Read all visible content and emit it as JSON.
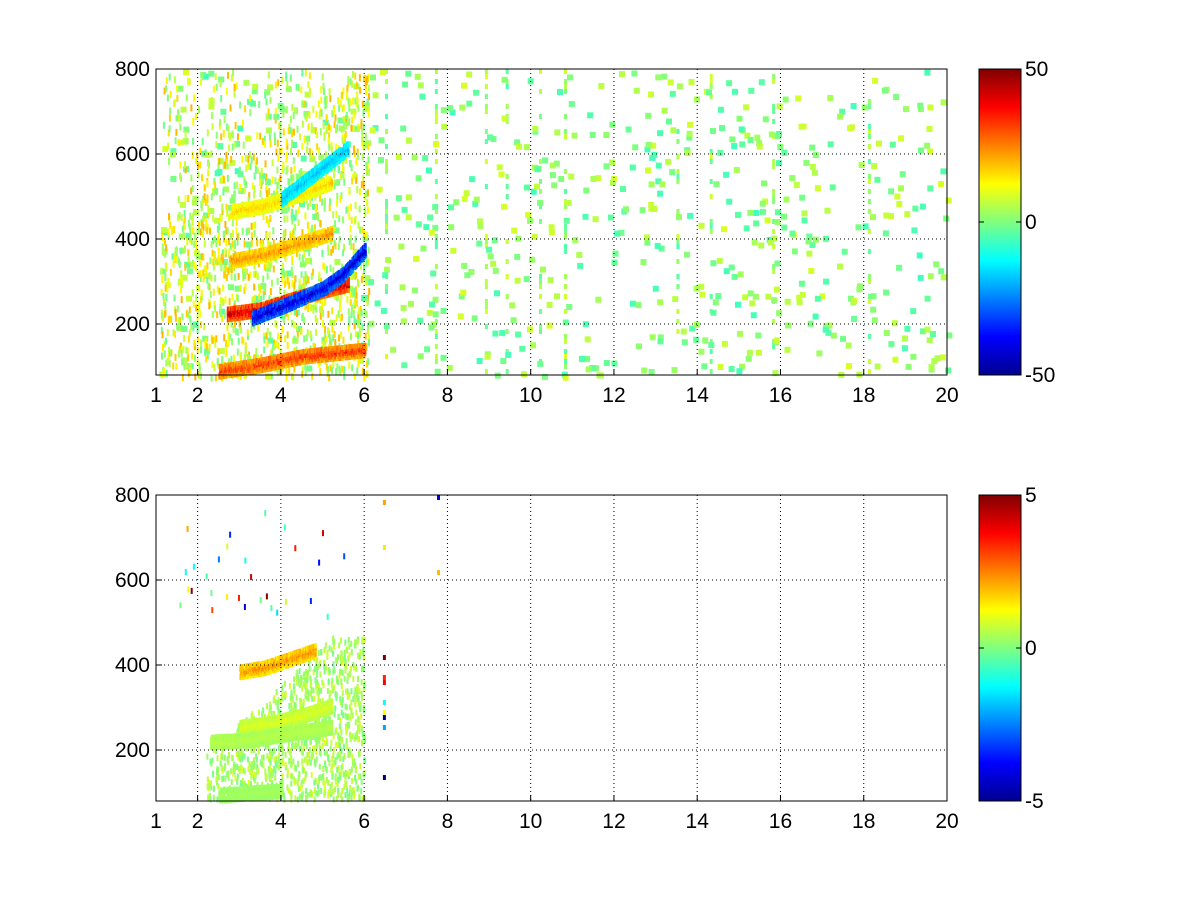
{
  "chart_data": [
    {
      "type": "heatmap",
      "title": "",
      "xlabel": "",
      "ylabel": "",
      "xlim": [
        1,
        20
      ],
      "ylim": [
        80,
        800
      ],
      "x_ticks": [
        1,
        2,
        4,
        6,
        8,
        10,
        12,
        14,
        16,
        18,
        20
      ],
      "x_tick_labels": [
        "1",
        "2",
        "4",
        "6",
        "8",
        "10",
        "12",
        "14",
        "16",
        "18",
        "20"
      ],
      "y_ticks": [
        200,
        400,
        600,
        800
      ],
      "y_tick_labels": [
        "200",
        "400",
        "600",
        "800"
      ],
      "grid": true,
      "colormap": "jet",
      "clim": [
        -50,
        50
      ],
      "colorbar_ticks": [
        -50,
        0,
        50
      ],
      "colorbar_tick_labels": [
        "-50",
        "0",
        "50"
      ],
      "features": [
        {
          "kind": "ridge",
          "x": [
            2.5,
            3.5,
            4.5,
            5.5,
            6.0
          ],
          "y": [
            95,
            110,
            130,
            140,
            145
          ],
          "value": 35
        },
        {
          "kind": "ridge",
          "x": [
            2.7,
            3.5,
            4.3,
            5.0,
            5.6
          ],
          "y": [
            230,
            240,
            265,
            285,
            300
          ],
          "value": 45
        },
        {
          "kind": "ridge",
          "x": [
            3.3,
            4.2,
            5.0,
            5.5,
            6.0
          ],
          "y": [
            220,
            255,
            290,
            325,
            380
          ],
          "value": -45
        },
        {
          "kind": "ridge",
          "x": [
            2.8,
            3.6,
            4.4,
            5.2
          ],
          "y": [
            355,
            370,
            395,
            420
          ],
          "value": 25
        },
        {
          "kind": "ridge",
          "x": [
            2.8,
            3.6,
            4.4,
            5.2
          ],
          "y": [
            470,
            485,
            510,
            540
          ],
          "value": 18
        },
        {
          "kind": "ridge",
          "x": [
            4.0,
            4.8,
            5.6
          ],
          "y": [
            500,
            560,
            620
          ],
          "value": -20
        }
      ],
      "scatter_columns_x": [
        6.5,
        7.7,
        8.9,
        9.4,
        10.2,
        10.8,
        13.5,
        14.3,
        15.8,
        18.1
      ]
    },
    {
      "type": "heatmap",
      "title": "",
      "xlabel": "",
      "ylabel": "",
      "xlim": [
        1,
        20
      ],
      "ylim": [
        80,
        800
      ],
      "x_ticks": [
        1,
        2,
        4,
        6,
        8,
        10,
        12,
        14,
        16,
        18,
        20
      ],
      "x_tick_labels": [
        "1",
        "2",
        "4",
        "6",
        "8",
        "10",
        "12",
        "14",
        "16",
        "18",
        "20"
      ],
      "y_ticks": [
        200,
        400,
        600,
        800
      ],
      "y_tick_labels": [
        "200",
        "400",
        "600",
        "800"
      ],
      "grid": true,
      "colormap": "jet",
      "clim": [
        -5,
        5
      ],
      "colorbar_ticks": [
        -5,
        0,
        5
      ],
      "colorbar_tick_labels": [
        "-5",
        "0",
        "5"
      ],
      "features": [
        {
          "kind": "ridge",
          "x": [
            3.0,
            3.6,
            4.2,
            4.8
          ],
          "y": [
            390,
            400,
            420,
            440
          ],
          "value": 2.5
        },
        {
          "kind": "ridge",
          "x": [
            3.0,
            3.8,
            4.6,
            5.2
          ],
          "y": [
            260,
            270,
            290,
            310
          ],
          "value": 1.0
        },
        {
          "kind": "ridge",
          "x": [
            2.3,
            3.2,
            4.2,
            5.2
          ],
          "y": [
            225,
            230,
            245,
            260
          ],
          "value": 0.6
        },
        {
          "kind": "ridge",
          "x": [
            2.5,
            3.2,
            4.0
          ],
          "y": [
            100,
            105,
            110
          ],
          "value": 0.4
        }
      ],
      "scatter_columns_x": [
        6.45,
        7.75
      ]
    }
  ]
}
